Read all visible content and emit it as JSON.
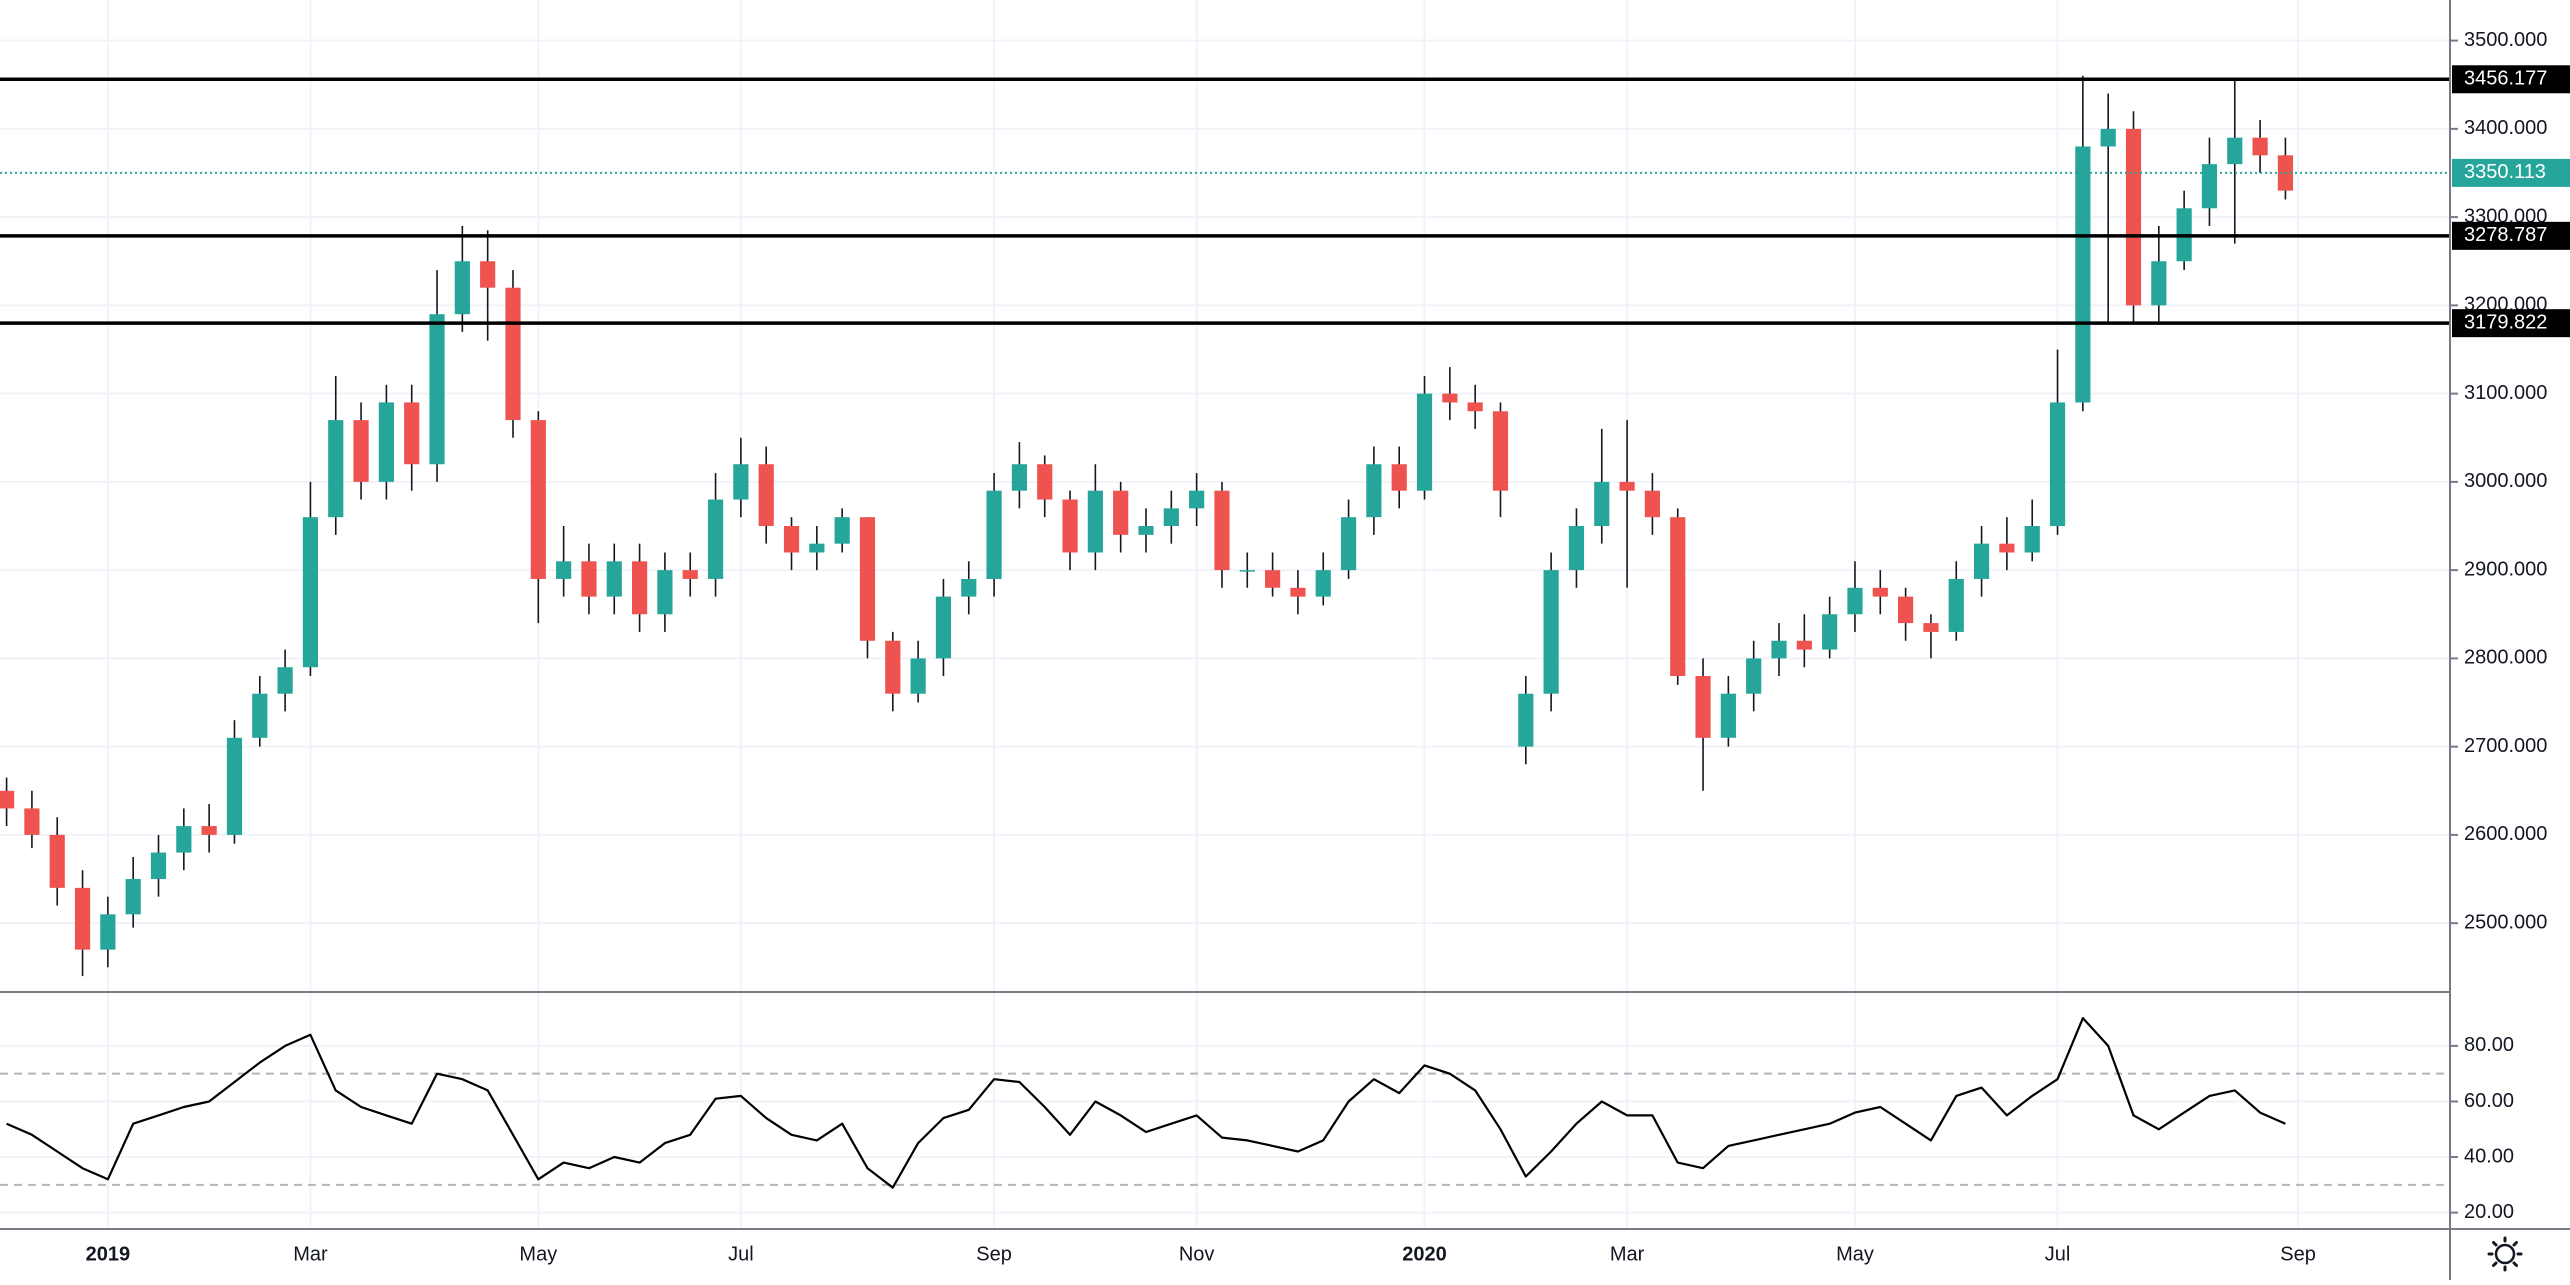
{
  "chart_data": [
    {
      "type": "candlestick",
      "xlim": [
        -0.26,
        96.5
      ],
      "xticks": [
        {
          "value": 4,
          "label": "2019"
        },
        {
          "value": 12,
          "label": "Mar"
        },
        {
          "value": 21,
          "label": "May"
        },
        {
          "value": 29,
          "label": "Jul"
        },
        {
          "value": 39,
          "label": "Sep"
        },
        {
          "value": 47,
          "label": "Nov"
        },
        {
          "value": 56,
          "label": "2020"
        },
        {
          "value": 64,
          "label": "Mar"
        },
        {
          "value": 73,
          "label": "May"
        },
        {
          "value": 81,
          "label": "Jul"
        },
        {
          "value": 90.5,
          "label": "Sep"
        }
      ],
      "ylim": [
        2422,
        3546
      ],
      "yticks": [
        {
          "value": 2500,
          "label": "2500.000"
        },
        {
          "value": 2600,
          "label": "2600.000"
        },
        {
          "value": 2700,
          "label": "2700.000"
        },
        {
          "value": 2800,
          "label": "2800.000"
        },
        {
          "value": 2900,
          "label": "2900.000"
        },
        {
          "value": 3000,
          "label": "3000.000"
        },
        {
          "value": 3100,
          "label": "3100.000"
        },
        {
          "value": 3200,
          "label": "3200.000"
        },
        {
          "value": 3300,
          "label": "3300.000"
        },
        {
          "value": 3400,
          "label": "3400.000"
        },
        {
          "value": 3500,
          "label": "3500.000"
        }
      ],
      "grid": true,
      "up_color": "#26a69a",
      "down_color": "#ef5350",
      "open": [
        2650,
        2630,
        2600,
        2540,
        2470,
        2510,
        2550,
        2580,
        2610,
        2600,
        2710,
        2760,
        2790,
        2960,
        3070,
        3000,
        3090,
        3020,
        3190,
        3250,
        3220,
        3070,
        2890,
        2910,
        2870,
        2910,
        2850,
        2900,
        2890,
        2980,
        3020,
        2950,
        2920,
        2930,
        2960,
        2820,
        2760,
        2800,
        2870,
        2890,
        2990,
        3020,
        2980,
        2920,
        2990,
        2940,
        2950,
        2970,
        2990,
        2900,
        2900,
        2880,
        2870,
        2900,
        2960,
        3020,
        2990,
        3100,
        3090,
        3080,
        2700,
        2760,
        2900,
        2950,
        3000,
        2990,
        2960,
        2780,
        2710,
        2760,
        2800,
        2820,
        2810,
        2850,
        2880,
        2870,
        2840,
        2830,
        2890,
        2930,
        2920,
        2950,
        3090,
        3380,
        3400,
        3200,
        3250,
        3310,
        3360,
        3390,
        3370
      ],
      "high": [
        2665,
        2650,
        2620,
        2560,
        2530,
        2575,
        2600,
        2630,
        2635,
        2730,
        2780,
        2810,
        3000,
        3120,
        3090,
        3110,
        3110,
        3240,
        3290,
        3285,
        3240,
        3080,
        2950,
        2930,
        2930,
        2930,
        2920,
        2920,
        3010,
        3050,
        3040,
        2960,
        2950,
        2970,
        2960,
        2830,
        2820,
        2890,
        2910,
        3010,
        3045,
        3030,
        2990,
        3020,
        3000,
        2970,
        2990,
        3010,
        3000,
        2920,
        2920,
        2900,
        2920,
        2980,
        3040,
        3040,
        3120,
        3130,
        3110,
        3090,
        2780,
        2920,
        2970,
        3060,
        3070,
        3010,
        2970,
        2800,
        2780,
        2820,
        2840,
        2850,
        2870,
        2910,
        2900,
        2880,
        2850,
        2910,
        2950,
        2960,
        2980,
        3150,
        3460,
        3440,
        3420,
        3290,
        3330,
        3390,
        3456,
        3410,
        3390
      ],
      "low": [
        2610,
        2585,
        2520,
        2440,
        2450,
        2495,
        2530,
        2560,
        2580,
        2590,
        2700,
        2740,
        2780,
        2940,
        2980,
        2980,
        2990,
        3000,
        3170,
        3160,
        3050,
        2840,
        2870,
        2850,
        2850,
        2830,
        2830,
        2870,
        2870,
        2960,
        2930,
        2900,
        2900,
        2920,
        2800,
        2740,
        2750,
        2780,
        2850,
        2870,
        2970,
        2960,
        2900,
        2900,
        2920,
        2920,
        2930,
        2950,
        2880,
        2880,
        2870,
        2850,
        2860,
        2890,
        2940,
        2970,
        2980,
        3070,
        3060,
        2960,
        2680,
        2740,
        2880,
        2930,
        2880,
        2940,
        2770,
        2650,
        2700,
        2740,
        2780,
        2790,
        2800,
        2830,
        2850,
        2820,
        2800,
        2820,
        2870,
        2900,
        2910,
        2940,
        3080,
        3180,
        3180,
        3180,
        3240,
        3290,
        3270,
        3350,
        3320
      ],
      "close": [
        2630,
        2600,
        2540,
        2470,
        2510,
        2550,
        2580,
        2610,
        2600,
        2710,
        2760,
        2790,
        2960,
        3070,
        3000,
        3090,
        3020,
        3190,
        3250,
        3220,
        3070,
        2890,
        2910,
        2870,
        2910,
        2850,
        2900,
        2890,
        2980,
        3020,
        2950,
        2920,
        2930,
        2960,
        2820,
        2760,
        2800,
        2870,
        2890,
        2990,
        3020,
        2980,
        2920,
        2990,
        2940,
        2950,
        2970,
        2990,
        2900,
        2900,
        2880,
        2870,
        2900,
        2960,
        3020,
        2990,
        3100,
        3090,
        3080,
        2990,
        2760,
        2900,
        2950,
        3000,
        2990,
        2960,
        2780,
        2710,
        2760,
        2800,
        2820,
        2810,
        2850,
        2880,
        2870,
        2840,
        2830,
        2890,
        2930,
        2920,
        2950,
        3090,
        3380,
        3400,
        3200,
        3250,
        3310,
        3360,
        3390,
        3370,
        3330
      ],
      "levels": [
        3456.177,
        3278.787,
        3179.822
      ],
      "level_color": "#000000",
      "last_price": 3350.113,
      "last_price_color": "#26a69a"
    },
    {
      "type": "line",
      "ylim": [
        14.1,
        99.4
      ],
      "yticks": [
        {
          "value": 20,
          "label": "20.00"
        },
        {
          "value": 40,
          "label": "40.00"
        },
        {
          "value": 60,
          "label": "60.00"
        },
        {
          "value": 80,
          "label": "80.00"
        }
      ],
      "grid": true,
      "bands": [
        30,
        70
      ],
      "color": "#000000",
      "values": [
        52,
        48,
        42,
        36,
        32,
        52,
        55,
        58,
        60,
        67,
        74,
        80,
        84,
        64,
        58,
        55,
        52,
        70,
        68,
        64,
        48,
        32,
        38,
        36,
        40,
        38,
        45,
        48,
        61,
        62,
        54,
        48,
        46,
        52,
        36,
        29,
        45,
        54,
        57,
        68,
        67,
        58,
        48,
        60,
        55,
        49,
        52,
        55,
        47,
        46,
        44,
        42,
        46,
        60,
        68,
        63,
        73,
        70,
        64,
        50,
        33,
        42,
        52,
        60,
        55,
        55,
        38,
        36,
        44,
        46,
        48,
        50,
        52,
        56,
        58,
        52,
        46,
        62,
        65,
        55,
        62,
        68,
        90,
        80,
        55,
        50,
        56,
        62,
        64,
        56,
        52
      ]
    }
  ]
}
